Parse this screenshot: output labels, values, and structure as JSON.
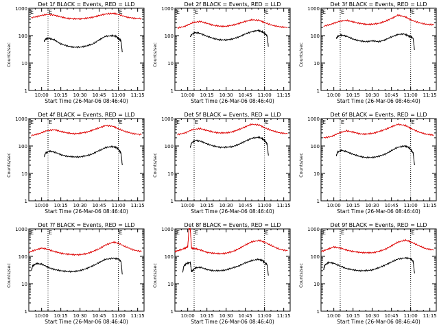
{
  "figure": {
    "colors": {
      "events": "#000000",
      "lld": "#dd0000",
      "axis": "#000000"
    },
    "ylabel": "Counts/sec",
    "xlabel": "Start Time (26-Mar-06 08:46:40)",
    "x_tick_labels": [
      "10:00",
      "10:15",
      "10:30",
      "10:45",
      "11:00",
      "11:15"
    ],
    "y_tick_labels": [
      "1000",
      "100",
      "10",
      "1"
    ]
  },
  "chart_data": [
    {
      "type": "line",
      "title": "Det 1f BLACK = Events, RED = LLD",
      "marker_labels": [
        "E",
        "E"
      ],
      "markers": [
        "10:05",
        "11:00"
      ],
      "x_unit": "minutes since 09:50",
      "ylim": [
        1,
        1000
      ],
      "yscale": "log",
      "series": [
        {
          "name": "Events",
          "color": "#000000",
          "x": [
            12,
            13,
            16,
            20,
            25,
            30,
            35,
            40,
            45,
            50,
            55,
            60,
            65,
            68,
            70,
            72,
            73
          ],
          "y": [
            60,
            75,
            80,
            70,
            50,
            42,
            38,
            38,
            42,
            50,
            70,
            95,
            100,
            95,
            80,
            65,
            25
          ]
        },
        {
          "name": "LLD",
          "color": "#dd0000",
          "x": [
            2,
            8,
            14,
            20,
            25,
            30,
            35,
            40,
            45,
            50,
            55,
            60,
            66,
            70,
            76,
            82,
            88
          ],
          "y": [
            450,
            520,
            600,
            560,
            480,
            430,
            410,
            410,
            430,
            470,
            540,
            620,
            650,
            600,
            480,
            430,
            420
          ]
        }
      ]
    },
    {
      "type": "line",
      "title": "Det 2f BLACK = Events, RED = LLD",
      "marker_labels": [
        "E",
        "E"
      ],
      "markers": [
        "10:05",
        "11:00"
      ],
      "x_unit": "minutes since 09:50",
      "ylim": [
        1,
        1000
      ],
      "yscale": "log",
      "series": [
        {
          "name": "Events",
          "color": "#000000",
          "x": [
            12,
            13,
            16,
            20,
            25,
            30,
            35,
            40,
            45,
            50,
            55,
            60,
            65,
            68,
            70,
            72,
            73
          ],
          "y": [
            90,
            110,
            130,
            120,
            95,
            80,
            70,
            70,
            75,
            90,
            115,
            140,
            155,
            140,
            120,
            100,
            40
          ]
        },
        {
          "name": "LLD",
          "color": "#dd0000",
          "x": [
            2,
            8,
            14,
            20,
            25,
            30,
            35,
            40,
            45,
            50,
            55,
            60,
            66,
            70,
            76,
            82,
            88
          ],
          "y": [
            190,
            220,
            300,
            330,
            280,
            240,
            220,
            220,
            240,
            280,
            330,
            380,
            360,
            300,
            240,
            210,
            200
          ]
        }
      ]
    },
    {
      "type": "line",
      "title": "Det 3f BLACK = Events, RED = LLD",
      "marker_labels": [
        "E",
        "E"
      ],
      "markers": [
        "10:05",
        "11:00"
      ],
      "x_unit": "minutes since 09:50",
      "ylim": [
        1,
        1000
      ],
      "yscale": "log",
      "series": [
        {
          "name": "Events",
          "color": "#000000",
          "x": [
            12,
            13,
            16,
            20,
            25,
            30,
            35,
            40,
            45,
            50,
            55,
            60,
            65,
            68,
            70,
            72,
            73
          ],
          "y": [
            80,
            95,
            105,
            95,
            75,
            65,
            60,
            65,
            60,
            70,
            90,
            110,
            115,
            100,
            90,
            80,
            30
          ]
        },
        {
          "name": "LLD",
          "color": "#dd0000",
          "x": [
            2,
            8,
            14,
            20,
            25,
            30,
            35,
            40,
            45,
            50,
            55,
            60,
            66,
            70,
            76,
            82,
            88
          ],
          "y": [
            220,
            260,
            330,
            360,
            320,
            280,
            260,
            260,
            280,
            330,
            420,
            560,
            480,
            380,
            300,
            260,
            250
          ]
        }
      ]
    },
    {
      "type": "line",
      "title": "Det 4f BLACK = Events, RED = LLD",
      "marker_labels": [
        "E",
        "E"
      ],
      "markers": [
        "10:05",
        "11:00"
      ],
      "x_unit": "minutes since 09:50",
      "ylim": [
        1,
        1000
      ],
      "yscale": "log",
      "series": [
        {
          "name": "Events",
          "color": "#000000",
          "x": [
            12,
            13,
            16,
            20,
            25,
            30,
            35,
            40,
            45,
            50,
            55,
            60,
            65,
            68,
            70,
            72,
            73
          ],
          "y": [
            40,
            55,
            65,
            60,
            48,
            42,
            40,
            40,
            44,
            52,
            68,
            88,
            95,
            90,
            75,
            55,
            20
          ]
        },
        {
          "name": "LLD",
          "color": "#dd0000",
          "x": [
            2,
            8,
            14,
            20,
            25,
            30,
            35,
            40,
            45,
            50,
            55,
            60,
            66,
            70,
            76,
            82,
            88
          ],
          "y": [
            240,
            280,
            360,
            390,
            340,
            300,
            280,
            290,
            320,
            380,
            460,
            560,
            520,
            420,
            330,
            280,
            260
          ]
        }
      ]
    },
    {
      "type": "line",
      "title": "Det 5f BLACK = Events, RED = LLD",
      "marker_labels": [
        "E",
        "E"
      ],
      "markers": [
        "10:05",
        "11:00"
      ],
      "x_unit": "minutes since 09:50",
      "ylim": [
        1,
        1000
      ],
      "yscale": "log",
      "series": [
        {
          "name": "Events",
          "color": "#000000",
          "x": [
            12,
            13,
            16,
            20,
            25,
            30,
            35,
            40,
            45,
            50,
            55,
            60,
            65,
            68,
            70,
            72,
            73
          ],
          "y": [
            90,
            130,
            160,
            150,
            120,
            100,
            90,
            90,
            95,
            115,
            150,
            190,
            210,
            190,
            160,
            120,
            45
          ]
        },
        {
          "name": "LLD",
          "color": "#dd0000",
          "x": [
            2,
            8,
            14,
            20,
            25,
            30,
            35,
            40,
            45,
            50,
            55,
            60,
            66,
            70,
            76,
            82,
            88
          ],
          "y": [
            260,
            300,
            400,
            430,
            370,
            320,
            300,
            300,
            330,
            400,
            500,
            620,
            580,
            460,
            360,
            300,
            280
          ]
        }
      ]
    },
    {
      "type": "line",
      "title": "Det 6f BLACK = Events, RED = LLD",
      "marker_labels": [
        "E",
        "E"
      ],
      "markers": [
        "10:05",
        "11:00"
      ],
      "x_unit": "minutes since 09:50",
      "ylim": [
        1,
        1000
      ],
      "yscale": "log",
      "series": [
        {
          "name": "Events",
          "color": "#000000",
          "x": [
            12,
            13,
            16,
            20,
            25,
            30,
            35,
            40,
            45,
            50,
            55,
            60,
            65,
            68,
            70,
            72,
            73
          ],
          "y": [
            45,
            60,
            70,
            62,
            50,
            42,
            38,
            38,
            42,
            50,
            68,
            90,
            100,
            92,
            75,
            55,
            20
          ]
        },
        {
          "name": "LLD",
          "color": "#dd0000",
          "x": [
            2,
            8,
            14,
            20,
            25,
            30,
            35,
            40,
            45,
            50,
            55,
            60,
            66,
            70,
            76,
            82,
            88
          ],
          "y": [
            200,
            220,
            300,
            360,
            320,
            280,
            270,
            290,
            330,
            400,
            500,
            620,
            560,
            440,
            330,
            270,
            250
          ]
        }
      ]
    },
    {
      "type": "line",
      "title": "Det 7f BLACK = Events, RED = LLD",
      "marker_labels": [
        "E",
        "E"
      ],
      "markers": [
        "10:05",
        "11:00"
      ],
      "x_unit": "minutes since 09:50",
      "ylim": [
        1,
        1000
      ],
      "yscale": "log",
      "series": [
        {
          "name": "Events",
          "color": "#000000",
          "x": [
            2,
            3,
            6,
            10,
            15,
            20,
            25,
            30,
            35,
            40,
            45,
            50,
            55,
            60,
            66,
            70,
            72,
            73
          ],
          "y": [
            30,
            45,
            55,
            52,
            40,
            33,
            30,
            28,
            28,
            30,
            36,
            45,
            60,
            78,
            85,
            80,
            65,
            22
          ]
        },
        {
          "name": "LLD",
          "color": "#dd0000",
          "x": [
            0,
            5,
            10,
            15,
            20,
            25,
            30,
            35,
            40,
            45,
            50,
            55,
            60,
            66,
            70,
            76,
            82,
            88
          ],
          "y": [
            140,
            170,
            200,
            180,
            150,
            130,
            120,
            115,
            115,
            125,
            150,
            190,
            260,
            330,
            300,
            220,
            170,
            150
          ]
        }
      ]
    },
    {
      "type": "line",
      "title": "Det 8f BLACK = Events, RED = LLD",
      "marker_labels": [
        "E",
        "E"
      ],
      "markers": [
        "10:05",
        "11:00"
      ],
      "x_unit": "minutes since 09:50",
      "ylim": [
        1,
        1000
      ],
      "yscale": "log",
      "series": [
        {
          "name": "Events",
          "color": "#000000",
          "x": [
            6,
            7,
            9,
            12,
            13,
            16,
            20,
            25,
            30,
            35,
            40,
            45,
            50,
            55,
            60,
            65,
            68,
            70,
            72,
            73
          ],
          "y": [
            25,
            45,
            55,
            60,
            28,
            38,
            40,
            33,
            30,
            30,
            32,
            38,
            45,
            58,
            70,
            78,
            72,
            60,
            50,
            20
          ]
        },
        {
          "name": "LLD",
          "color": "#dd0000",
          "x": [
            0,
            4,
            8,
            10,
            11,
            12,
            13,
            16,
            20,
            25,
            30,
            35,
            40,
            45,
            50,
            55,
            60,
            66,
            70,
            76,
            82,
            88
          ],
          "y": [
            150,
            170,
            200,
            220,
            1000,
            1000,
            200,
            190,
            170,
            140,
            130,
            125,
            130,
            150,
            190,
            260,
            340,
            380,
            330,
            240,
            180,
            160
          ]
        }
      ]
    },
    {
      "type": "line",
      "title": "Det 9f BLACK = Events, RED = LLD",
      "marker_labels": [
        "E",
        "E"
      ],
      "markers": [
        "10:05",
        "11:00"
      ],
      "x_unit": "minutes since 09:50",
      "ylim": [
        1,
        1000
      ],
      "yscale": "log",
      "series": [
        {
          "name": "Events",
          "color": "#000000",
          "x": [
            2,
            3,
            6,
            10,
            15,
            20,
            25,
            30,
            35,
            40,
            45,
            50,
            55,
            60,
            66,
            70,
            72,
            73
          ],
          "y": [
            32,
            48,
            60,
            56,
            44,
            36,
            32,
            30,
            30,
            32,
            38,
            48,
            62,
            80,
            88,
            82,
            66,
            24
          ]
        },
        {
          "name": "LLD",
          "color": "#dd0000",
          "x": [
            0,
            5,
            10,
            15,
            20,
            25,
            30,
            35,
            40,
            45,
            50,
            55,
            60,
            66,
            70,
            76,
            82,
            88
          ],
          "y": [
            150,
            180,
            220,
            200,
            170,
            150,
            140,
            135,
            135,
            150,
            180,
            240,
            330,
            390,
            340,
            250,
            190,
            170
          ]
        }
      ]
    }
  ]
}
